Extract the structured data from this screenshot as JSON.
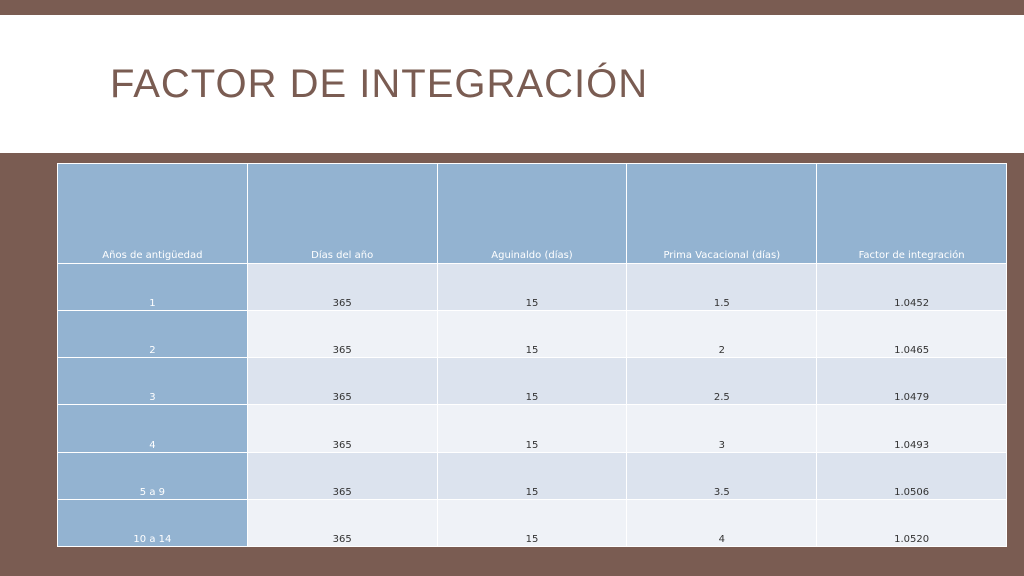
{
  "slide": {
    "title": "FACTOR DE INTEGRACIÓN"
  },
  "table": {
    "headers": [
      "Años de antigüedad",
      "Días del año",
      "Aguinaldo (días)",
      "Prima Vacacional (días)",
      "Factor de integración"
    ],
    "rows": [
      [
        "1",
        "365",
        "15",
        "1.5",
        "1.0452"
      ],
      [
        "2",
        "365",
        "15",
        "2",
        "1.0465"
      ],
      [
        "3",
        "365",
        "15",
        "2.5",
        "1.0479"
      ],
      [
        "4",
        "365",
        "15",
        "3",
        "1.0493"
      ],
      [
        "5 a 9",
        "365",
        "15",
        "3.5",
        "1.0506"
      ],
      [
        "10 a 14",
        "365",
        "15",
        "4",
        "1.0520"
      ]
    ]
  },
  "colors": {
    "background": "#7a5c52",
    "title": "#7a5c52",
    "header_fill": "#93b3d1",
    "row_band_dark": "#dce3ee",
    "row_band_light": "#eff2f7"
  }
}
